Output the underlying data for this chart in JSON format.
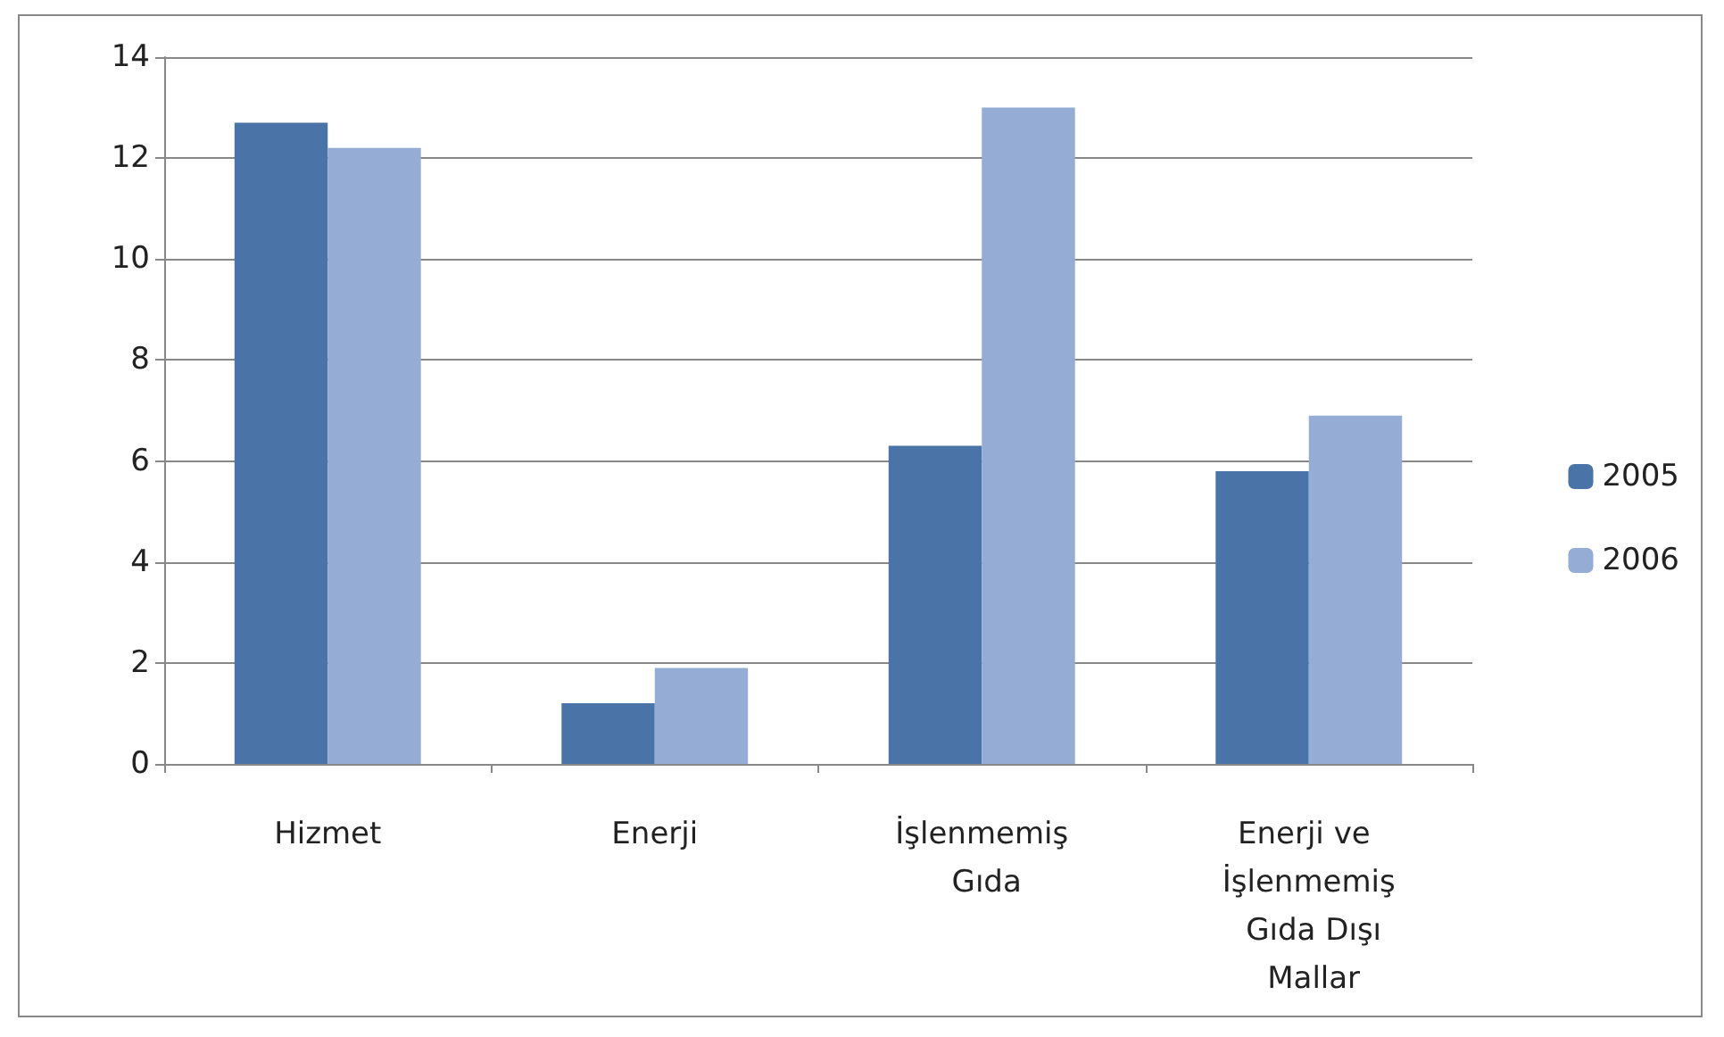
{
  "chart_data": {
    "type": "bar",
    "categories": [
      "Hizmet",
      "Enerji",
      "İşlenmemiş Gıda",
      "Enerji ve İşlenmemiş Gıda Dışı Mallar"
    ],
    "series": [
      {
        "name": "2005",
        "color": "#4a74a8",
        "values": [
          12.7,
          1.2,
          6.3,
          5.8
        ]
      },
      {
        "name": "2006",
        "color": "#95acd4",
        "values": [
          12.2,
          1.9,
          13.0,
          6.9
        ]
      }
    ],
    "ylim": [
      0,
      14
    ],
    "yticks": [
      0,
      2,
      4,
      6,
      8,
      10,
      12,
      14
    ],
    "grid": "y",
    "legend": "right"
  }
}
